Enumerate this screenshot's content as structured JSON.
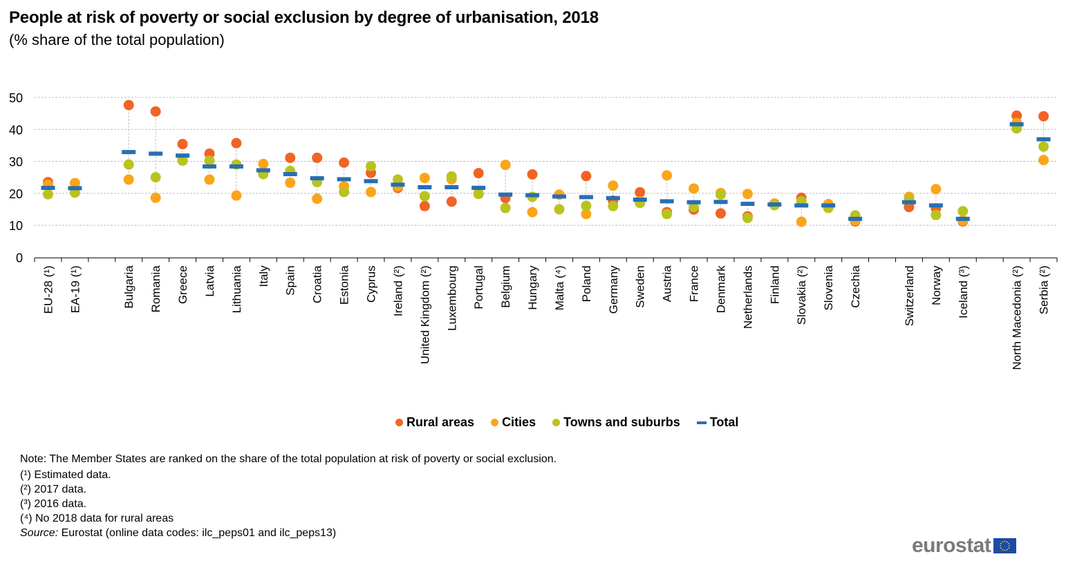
{
  "header": {
    "title": "People at risk of poverty or social exclusion by degree of urbanisation, 2018",
    "subtitle": "(% share of the total population)"
  },
  "colors": {
    "rural": "#f06424",
    "cities": "#faa519",
    "towns": "#b9c31e",
    "total": "#286eb4",
    "grid": "#bfbfbf",
    "logo_text": "#7a7a7a",
    "flag_blue": "#1d4aa5",
    "flag_star": "#ffe000"
  },
  "chart_data": {
    "type": "scatter",
    "title": "People at risk of poverty or social exclusion by degree of urbanisation, 2018",
    "subtitle": "(% share of the total population)",
    "xlabel": "",
    "ylabel": "",
    "ylim": [
      0,
      50
    ],
    "yticks": [
      0,
      10,
      20,
      30,
      40,
      50
    ],
    "grid": true,
    "legend_position": "bottom-center",
    "categories": [
      "EU-28 (¹)",
      "EA-19 (¹)",
      "",
      "Bulgaria",
      "Romania",
      "Greece",
      "Latvia",
      "Lithuania",
      "Italy",
      "Spain",
      "Croatia",
      "Estonia",
      "Cyprus",
      "Ireland (²)",
      "United Kingdom (²)",
      "Luxembourg",
      "Portugal",
      "Belgium",
      "Hungary",
      "Malta (⁴)",
      "Poland",
      "Germany",
      "Sweden",
      "Austria",
      "France",
      "Denmark",
      "Netherlands",
      "Finland",
      "Slovakia (²)",
      "Slovenia",
      "Czechia",
      "",
      "Switzerland",
      "Norway",
      "Iceland (³)",
      "",
      "North Macedonia (²)",
      "Serbia (²)"
    ],
    "series": [
      {
        "name": "Rural areas",
        "key": "rural",
        "marker": "circle",
        "values": [
          23.5,
          null,
          null,
          47.6,
          45.6,
          35.4,
          32.4,
          35.7,
          26.5,
          31.1,
          31.1,
          29.6,
          26.4,
          21.7,
          16.0,
          17.4,
          26.3,
          18.5,
          25.9,
          null,
          25.4,
          17.7,
          20.3,
          14.1,
          14.9,
          13.7,
          12.8,
          16.7,
          18.6,
          16.6,
          11.2,
          null,
          15.7,
          15.3,
          11.2,
          null,
          44.3,
          44.1
        ]
      },
      {
        "name": "Cities",
        "key": "cities",
        "marker": "circle",
        "values": [
          22.7,
          23.2,
          null,
          24.3,
          18.6,
          30.5,
          24.3,
          19.3,
          29.2,
          23.3,
          18.3,
          22.2,
          20.4,
          22.2,
          24.8,
          24.4,
          20.0,
          28.9,
          14.1,
          19.6,
          13.5,
          22.4,
          17.5,
          25.6,
          21.5,
          20.1,
          19.8,
          16.8,
          11.1,
          16.6,
          11.5,
          null,
          18.9,
          21.3,
          11.5,
          null,
          42.0,
          30.4
        ]
      },
      {
        "name": "Towns and suburbs",
        "key": "towns",
        "marker": "circle",
        "values": [
          19.7,
          20.2,
          null,
          29.0,
          25.0,
          30.2,
          30.2,
          29.0,
          26.0,
          27.0,
          23.5,
          20.4,
          28.5,
          24.3,
          19.1,
          25.3,
          19.8,
          15.4,
          18.9,
          15.0,
          16.1,
          16.0,
          17.0,
          13.5,
          15.7,
          19.6,
          12.3,
          16.3,
          17.5,
          15.4,
          13.1,
          null,
          18.0,
          13.2,
          14.4,
          null,
          40.3,
          34.6
        ]
      },
      {
        "name": "Total",
        "key": "total",
        "marker": "dash",
        "values": [
          21.7,
          21.6,
          null,
          32.9,
          32.4,
          31.8,
          28.4,
          28.4,
          27.2,
          26.0,
          24.7,
          24.4,
          23.8,
          22.7,
          21.9,
          21.9,
          21.7,
          19.6,
          19.4,
          19.0,
          18.8,
          18.5,
          18.0,
          17.5,
          17.2,
          17.3,
          16.7,
          16.5,
          16.2,
          16.2,
          12.0,
          null,
          17.2,
          16.2,
          12.0,
          null,
          41.6,
          36.9
        ]
      }
    ]
  },
  "legend": {
    "items": [
      {
        "label": "Rural areas",
        "key": "rural"
      },
      {
        "label": "Cities",
        "key": "cities"
      },
      {
        "label": "Towns and suburbs",
        "key": "towns"
      },
      {
        "label": "Total",
        "key": "total"
      }
    ]
  },
  "notes": {
    "main": "Note: The Member States are ranked on the share of the total population  at risk of poverty or social exclusion.",
    "footnotes": [
      "(¹) Estimated data.",
      "(²) 2017 data.",
      "(³) 2016 data.",
      "(⁴) No 2018 data for rural areas"
    ],
    "source_label": "Source:",
    "source_text": " Eurostat (online data codes: ilc_peps01 and ilc_peps13)"
  },
  "logo": {
    "text": "eurostat"
  }
}
